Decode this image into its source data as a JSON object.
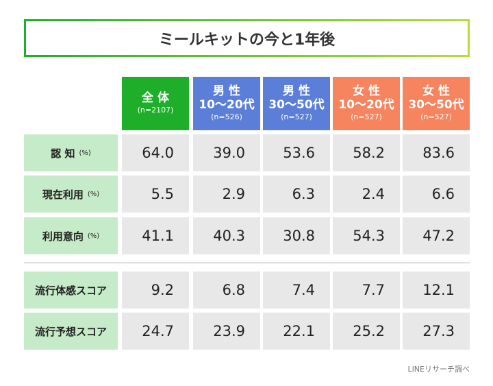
{
  "title": "ミールキットの今と1年後",
  "columns": [
    {
      "line1": "全 体",
      "n": "(n=2107)",
      "color": "#1fae2a"
    },
    {
      "line1": "男 性",
      "line2": "10〜20代",
      "n": "(n=526)",
      "color": "#5b7fd8"
    },
    {
      "line1": "男 性",
      "line2": "30〜50代",
      "n": "(n=527)",
      "color": "#5b7fd8"
    },
    {
      "line1": "女 性",
      "line2": "10〜20代",
      "n": "(n=527)",
      "color": "#f5845f"
    },
    {
      "line1": "女 性",
      "line2": "30〜50代",
      "n": "(n=527)",
      "color": "#f5845f"
    }
  ],
  "rows": [
    {
      "label": "認 知",
      "unit": "(%)",
      "values": [
        "64.0",
        "39.0",
        "53.6",
        "58.2",
        "83.6"
      ]
    },
    {
      "label": "現在利用",
      "unit": "(%)",
      "values": [
        "5.5",
        "2.9",
        "6.3",
        "2.4",
        "6.6"
      ]
    },
    {
      "label": "利用意向",
      "unit": "(%)",
      "values": [
        "41.1",
        "40.3",
        "30.8",
        "54.3",
        "47.2"
      ]
    },
    {
      "label": "流行体感スコア",
      "values": [
        "9.2",
        "6.8",
        "7.4",
        "7.7",
        "12.1"
      ]
    },
    {
      "label": "流行予想スコア",
      "values": [
        "24.7",
        "23.9",
        "22.1",
        "25.2",
        "27.3"
      ]
    }
  ],
  "source": "LINEリサーチ調べ"
}
